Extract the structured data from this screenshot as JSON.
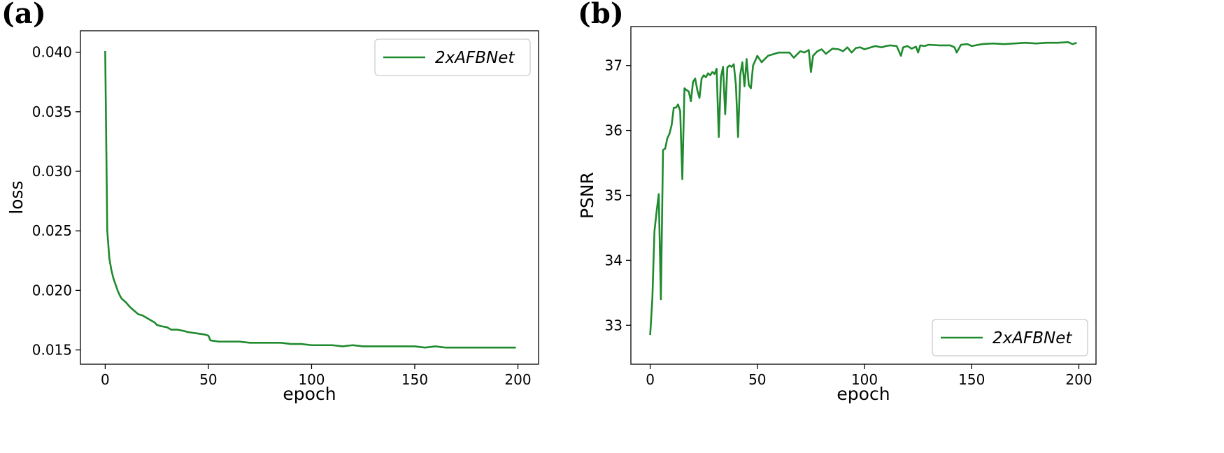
{
  "panels": [
    {
      "label": "(a)"
    },
    {
      "label": "(b)"
    }
  ],
  "chart_data": [
    {
      "type": "line",
      "xlabel": "epoch",
      "ylabel": "loss",
      "xlim": [
        -12,
        210
      ],
      "ylim": [
        0.0138,
        0.0418
      ],
      "xticks": [
        0,
        50,
        100,
        150,
        200
      ],
      "yticks": [
        0.015,
        0.02,
        0.025,
        0.03,
        0.035,
        0.04
      ],
      "ytick_labels": [
        "0.015",
        "0.020",
        "0.025",
        "0.030",
        "0.035",
        "0.040"
      ],
      "legend": "top-right",
      "grid": false,
      "series": [
        {
          "name": "2xAFBNet",
          "color": "#1f8a2e",
          "points": [
            [
              0,
              0.0401
            ],
            [
              1,
              0.025
            ],
            [
              2,
              0.0227
            ],
            [
              3,
              0.0217
            ],
            [
              4,
              0.021
            ],
            [
              5,
              0.0205
            ],
            [
              6,
              0.02
            ],
            [
              7,
              0.0196
            ],
            [
              8,
              0.0193
            ],
            [
              10,
              0.019
            ],
            [
              12,
              0.0186
            ],
            [
              14,
              0.0183
            ],
            [
              16,
              0.018
            ],
            [
              18,
              0.0179
            ],
            [
              20,
              0.0177
            ],
            [
              22,
              0.0175
            ],
            [
              24,
              0.0173
            ],
            [
              25,
              0.0171
            ],
            [
              27,
              0.017
            ],
            [
              30,
              0.0169
            ],
            [
              32,
              0.0167
            ],
            [
              35,
              0.0167
            ],
            [
              38,
              0.0166
            ],
            [
              40,
              0.0165
            ],
            [
              44,
              0.0164
            ],
            [
              48,
              0.0163
            ],
            [
              50,
              0.0162
            ],
            [
              51,
              0.0158
            ],
            [
              55,
              0.0157
            ],
            [
              60,
              0.0157
            ],
            [
              65,
              0.0157
            ],
            [
              70,
              0.0156
            ],
            [
              75,
              0.0156
            ],
            [
              80,
              0.0156
            ],
            [
              85,
              0.0156
            ],
            [
              90,
              0.0155
            ],
            [
              95,
              0.0155
            ],
            [
              100,
              0.0154
            ],
            [
              105,
              0.0154
            ],
            [
              110,
              0.0154
            ],
            [
              115,
              0.0153
            ],
            [
              120,
              0.0154
            ],
            [
              125,
              0.0153
            ],
            [
              130,
              0.0153
            ],
            [
              135,
              0.0153
            ],
            [
              140,
              0.0153
            ],
            [
              145,
              0.0153
            ],
            [
              150,
              0.0153
            ],
            [
              155,
              0.0152
            ],
            [
              160,
              0.0153
            ],
            [
              165,
              0.0152
            ],
            [
              170,
              0.0152
            ],
            [
              175,
              0.0152
            ],
            [
              180,
              0.0152
            ],
            [
              185,
              0.0152
            ],
            [
              190,
              0.0152
            ],
            [
              195,
              0.0152
            ],
            [
              199,
              0.0152
            ]
          ]
        }
      ]
    },
    {
      "type": "line",
      "xlabel": "epoch",
      "ylabel": "PSNR",
      "xlim": [
        -9,
        208
      ],
      "ylim": [
        32.4,
        37.6
      ],
      "xticks": [
        0,
        50,
        100,
        150,
        200
      ],
      "yticks": [
        33,
        34,
        35,
        36,
        37
      ],
      "ytick_labels": [
        "33",
        "34",
        "35",
        "36",
        "37"
      ],
      "legend": "bottom-right",
      "grid": false,
      "series": [
        {
          "name": "2xAFBNet",
          "color": "#1f8a2e",
          "points": [
            [
              0,
              32.85
            ],
            [
              1,
              33.4
            ],
            [
              2,
              34.45
            ],
            [
              3,
              34.75
            ],
            [
              4,
              35.02
            ],
            [
              5,
              33.4
            ],
            [
              6,
              35.7
            ],
            [
              7,
              35.72
            ],
            [
              8,
              35.88
            ],
            [
              9,
              35.95
            ],
            [
              10,
              36.08
            ],
            [
              11,
              36.35
            ],
            [
              12,
              36.35
            ],
            [
              13,
              36.4
            ],
            [
              14,
              36.3
            ],
            [
              15,
              35.25
            ],
            [
              16,
              36.65
            ],
            [
              17,
              36.62
            ],
            [
              18,
              36.6
            ],
            [
              19,
              36.45
            ],
            [
              20,
              36.75
            ],
            [
              21,
              36.8
            ],
            [
              22,
              36.62
            ],
            [
              23,
              36.5
            ],
            [
              24,
              36.8
            ],
            [
              25,
              36.85
            ],
            [
              26,
              36.82
            ],
            [
              27,
              36.88
            ],
            [
              28,
              36.85
            ],
            [
              29,
              36.9
            ],
            [
              30,
              36.87
            ],
            [
              31,
              36.95
            ],
            [
              32,
              35.9
            ],
            [
              33,
              36.82
            ],
            [
              34,
              36.98
            ],
            [
              35,
              36.25
            ],
            [
              36,
              36.97
            ],
            [
              37,
              37.0
            ],
            [
              38,
              36.98
            ],
            [
              39,
              37.02
            ],
            [
              40,
              36.7
            ],
            [
              41,
              35.9
            ],
            [
              42,
              36.85
            ],
            [
              43,
              37.05
            ],
            [
              44,
              36.68
            ],
            [
              45,
              37.1
            ],
            [
              46,
              36.7
            ],
            [
              47,
              36.65
            ],
            [
              48,
              37.0
            ],
            [
              50,
              37.15
            ],
            [
              52,
              37.05
            ],
            [
              55,
              37.15
            ],
            [
              58,
              37.18
            ],
            [
              60,
              37.2
            ],
            [
              62,
              37.2
            ],
            [
              65,
              37.2
            ],
            [
              67,
              37.12
            ],
            [
              70,
              37.22
            ],
            [
              72,
              37.2
            ],
            [
              74,
              37.24
            ],
            [
              75,
              36.9
            ],
            [
              76,
              37.15
            ],
            [
              78,
              37.22
            ],
            [
              80,
              37.25
            ],
            [
              82,
              37.18
            ],
            [
              85,
              37.26
            ],
            [
              88,
              37.25
            ],
            [
              90,
              37.22
            ],
            [
              92,
              37.28
            ],
            [
              94,
              37.2
            ],
            [
              96,
              37.27
            ],
            [
              98,
              37.28
            ],
            [
              100,
              37.25
            ],
            [
              102,
              37.27
            ],
            [
              105,
              37.3
            ],
            [
              108,
              37.28
            ],
            [
              110,
              37.3
            ],
            [
              112,
              37.31
            ],
            [
              115,
              37.3
            ],
            [
              117,
              37.15
            ],
            [
              118,
              37.28
            ],
            [
              120,
              37.3
            ],
            [
              122,
              37.26
            ],
            [
              124,
              37.29
            ],
            [
              125,
              37.2
            ],
            [
              126,
              37.31
            ],
            [
              128,
              37.3
            ],
            [
              130,
              37.32
            ],
            [
              135,
              37.31
            ],
            [
              140,
              37.31
            ],
            [
              142,
              37.28
            ],
            [
              143,
              37.2
            ],
            [
              145,
              37.32
            ],
            [
              148,
              37.33
            ],
            [
              150,
              37.3
            ],
            [
              155,
              37.33
            ],
            [
              160,
              37.34
            ],
            [
              165,
              37.33
            ],
            [
              170,
              37.34
            ],
            [
              175,
              37.35
            ],
            [
              180,
              37.34
            ],
            [
              185,
              37.35
            ],
            [
              190,
              37.35
            ],
            [
              195,
              37.36
            ],
            [
              197,
              37.33
            ],
            [
              199,
              37.35
            ]
          ]
        }
      ]
    }
  ]
}
